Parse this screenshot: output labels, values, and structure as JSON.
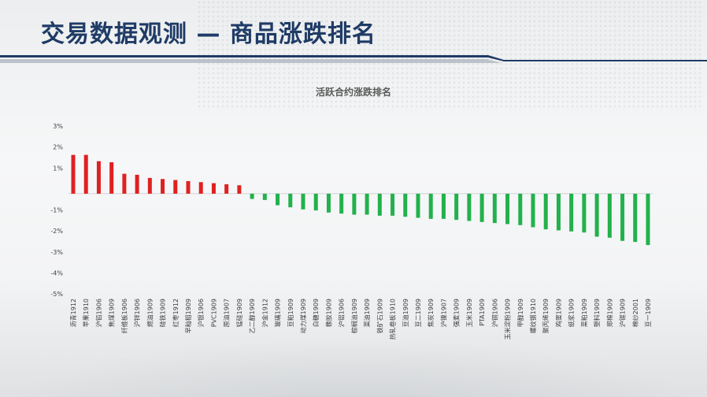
{
  "header": {
    "title": "交易数据观测 — 商品涨跌排名"
  },
  "colors": {
    "up": "#e02020",
    "down": "#22b14c",
    "title": "#1f3b66"
  },
  "chart_data": {
    "type": "bar",
    "title": "活跃合约涨跌排名",
    "xlabel": "",
    "ylabel": "",
    "ylim": [
      -5,
      3
    ],
    "yticks": [
      "3%",
      "2%",
      "1%",
      "-1%",
      "-2%",
      "-3%",
      "-4%",
      "-5%"
    ],
    "grid": false,
    "categories": [
      "沥青1912",
      "苹果1910",
      "沪铅1906",
      "焦煤1909",
      "纤维板1906",
      "沪锌1906",
      "燃油1909",
      "硅铁1909",
      "红枣1912",
      "早籼稻1909",
      "沪银1906",
      "PVC1909",
      "原油1907",
      "锰硅1909",
      "乙二醇1909",
      "沪金1912",
      "玻璃1909",
      "豆粕1909",
      "动力煤1909",
      "白糖1909",
      "橡胶1909",
      "沪铝1906",
      "棕榈油1909",
      "菜油1909",
      "铁矿石1909",
      "热轧卷板1910",
      "豆油1909",
      "豆二1909",
      "焦炭1909",
      "沪镍1907",
      "强麦1909",
      "玉米1909",
      "PTA1909",
      "沪铜1906",
      "玉米淀粉1909",
      "甲醇1909",
      "螺纹钢1910",
      "聚丙烯1909",
      "鸡蛋1909",
      "纸浆1909",
      "菜粕1909",
      "塑料1909",
      "郑棉1909",
      "沪锡1909",
      "棉纱2001",
      "豆一1909"
    ],
    "values": [
      1.85,
      1.85,
      1.55,
      1.5,
      0.95,
      0.9,
      0.75,
      0.7,
      0.65,
      0.6,
      0.55,
      0.5,
      0.45,
      0.4,
      -0.25,
      -0.3,
      -0.55,
      -0.65,
      -0.75,
      -0.8,
      -0.9,
      -0.95,
      -1.0,
      -1.0,
      -1.05,
      -1.05,
      -1.1,
      -1.15,
      -1.2,
      -1.2,
      -1.25,
      -1.3,
      -1.35,
      -1.4,
      -1.45,
      -1.5,
      -1.6,
      -1.7,
      -1.75,
      -1.8,
      -1.85,
      -2.05,
      -2.1,
      -2.25,
      -2.3,
      -2.45
    ]
  }
}
